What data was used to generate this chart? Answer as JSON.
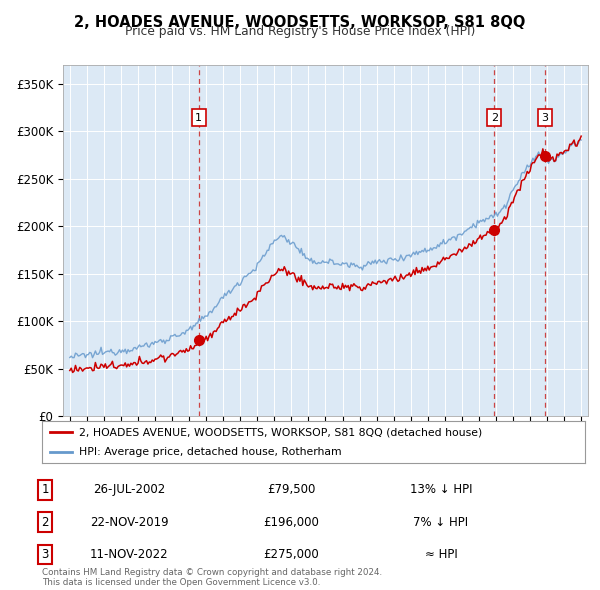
{
  "title": "2, HOADES AVENUE, WOODSETTS, WORKSOP, S81 8QQ",
  "subtitle": "Price paid vs. HM Land Registry's House Price Index (HPI)",
  "background_color": "#ffffff",
  "chart_bg_color": "#dce9f5",
  "grid_color": "#ffffff",
  "sale_color": "#cc0000",
  "hpi_color": "#6699cc",
  "vline_color": "#cc4444",
  "legend_label_sale": "2, HOADES AVENUE, WOODSETTS, WORKSOP, S81 8QQ (detached house)",
  "legend_label_hpi": "HPI: Average price, detached house, Rotherham",
  "transactions": [
    {
      "num": 1,
      "date_x": 2002.56,
      "price": 79500,
      "label": "26-JUL-2002",
      "price_str": "£79,500",
      "rel": "13% ↓ HPI"
    },
    {
      "num": 2,
      "date_x": 2019.9,
      "price": 196000,
      "label": "22-NOV-2019",
      "price_str": "£196,000",
      "rel": "7% ↓ HPI"
    },
    {
      "num": 3,
      "date_x": 2022.87,
      "price": 275000,
      "label": "11-NOV-2022",
      "price_str": "£275,000",
      "rel": "≈ HPI"
    }
  ],
  "footnote": "Contains HM Land Registry data © Crown copyright and database right 2024.\nThis data is licensed under the Open Government Licence v3.0.",
  "ylim": [
    0,
    370000
  ],
  "yticks": [
    0,
    50000,
    100000,
    150000,
    200000,
    250000,
    300000,
    350000
  ],
  "ytick_labels": [
    "£0",
    "£50K",
    "£100K",
    "£150K",
    "£200K",
    "£250K",
    "£300K",
    "£350K"
  ],
  "xlim_start": 1994.6,
  "xlim_end": 2025.4
}
